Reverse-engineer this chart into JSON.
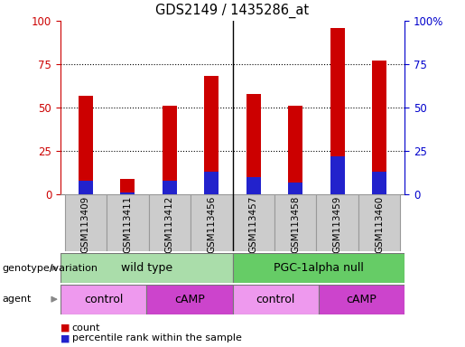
{
  "title": "GDS2149 / 1435286_at",
  "samples": [
    "GSM113409",
    "GSM113411",
    "GSM113412",
    "GSM113456",
    "GSM113457",
    "GSM113458",
    "GSM113459",
    "GSM113460"
  ],
  "count_values": [
    57,
    9,
    51,
    68,
    58,
    51,
    96,
    77
  ],
  "percentile_values": [
    8,
    1,
    8,
    13,
    10,
    7,
    22,
    13
  ],
  "bar_color_red": "#cc0000",
  "bar_color_blue": "#2222cc",
  "y_left_label_color": "#cc0000",
  "y_right_label_color": "#0000cc",
  "ylim": [
    0,
    100
  ],
  "grid_yticks": [
    25,
    50,
    75
  ],
  "genotype_groups": [
    {
      "label": "wild type",
      "span": [
        0,
        4
      ],
      "color": "#aaddaa"
    },
    {
      "label": "PGC-1alpha null",
      "span": [
        4,
        8
      ],
      "color": "#66cc66"
    }
  ],
  "agent_groups": [
    {
      "label": "control",
      "span": [
        0,
        2
      ],
      "color": "#ee99ee"
    },
    {
      "label": "cAMP",
      "span": [
        2,
        4
      ],
      "color": "#cc44cc"
    },
    {
      "label": "control",
      "span": [
        4,
        6
      ],
      "color": "#ee99ee"
    },
    {
      "label": "cAMP",
      "span": [
        6,
        8
      ],
      "color": "#cc44cc"
    }
  ],
  "legend_count_label": "count",
  "legend_percentile_label": "percentile rank within the sample",
  "genotype_row_label": "genotype/variation",
  "agent_row_label": "agent",
  "background_color": "#ffffff",
  "tick_area_color": "#cccccc",
  "bar_width": 0.35
}
